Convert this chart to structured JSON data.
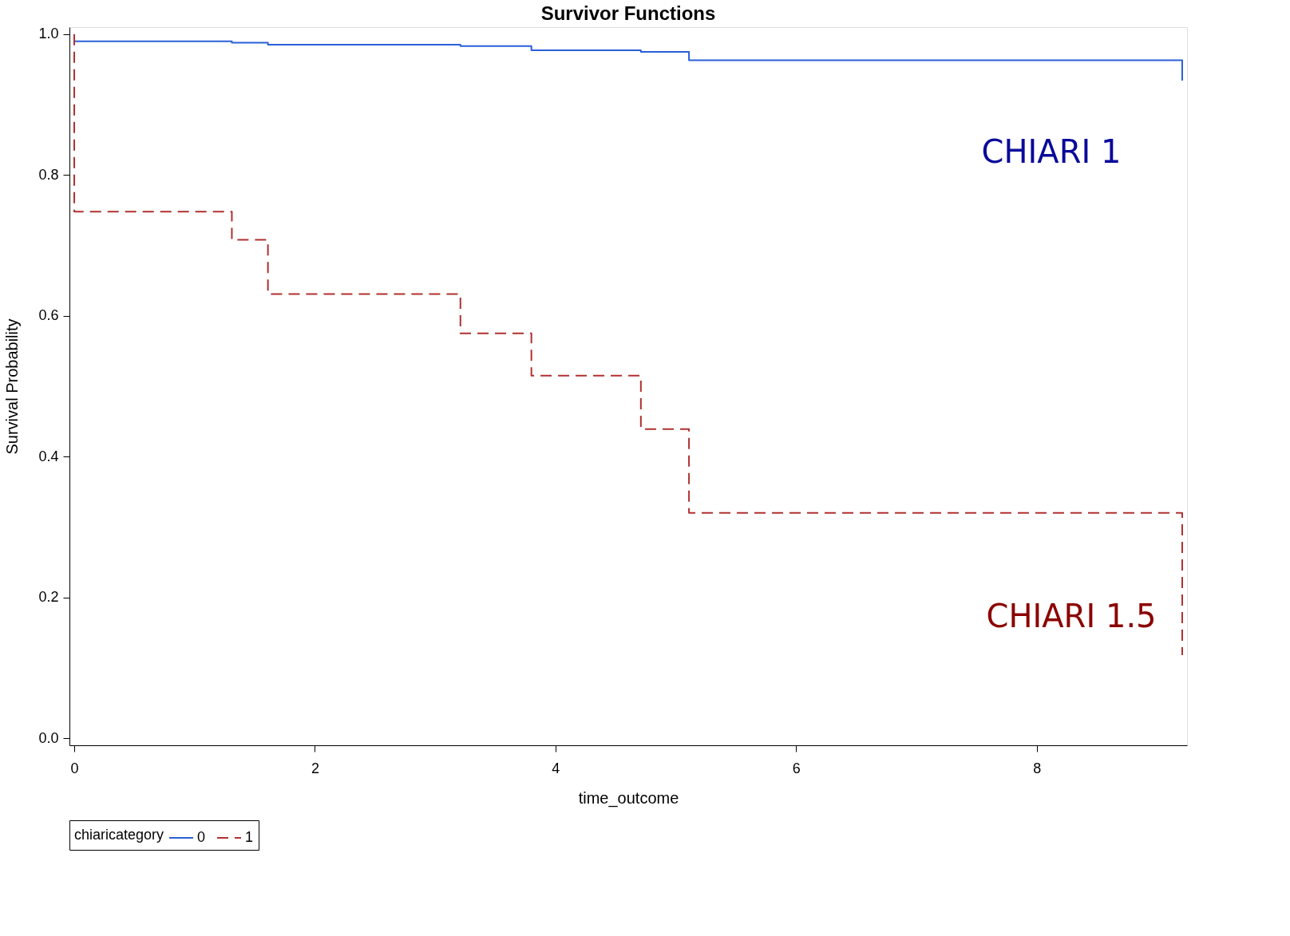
{
  "chart_data": {
    "type": "step",
    "title": "Survivor Functions",
    "xlabel": "time_outcome",
    "ylabel": "Survival Probability",
    "legend_title": "chiaricategory",
    "legend": "bottom",
    "grid": false,
    "series": [
      {
        "name": "0",
        "color": "#2a5fd8",
        "line_style": "solid",
        "x": [
          0,
          1.31,
          1.61,
          3.21,
          3.8,
          4.71,
          5.11,
          9.21,
          9.21
        ],
        "values": [
          0.99,
          0.988,
          0.985,
          0.983,
          0.977,
          0.975,
          0.963,
          0.963,
          0.934
        ]
      },
      {
        "name": "1",
        "color": "#b03030",
        "line_style": "dashed",
        "x": [
          0,
          0,
          1.31,
          1.61,
          3.21,
          3.8,
          4.71,
          5.11,
          9.21,
          9.21
        ],
        "values": [
          1.0,
          0.748,
          0.708,
          0.631,
          0.575,
          0.515,
          0.439,
          0.32,
          0.32,
          0.118
        ]
      }
    ],
    "xlim": [
      -0.04,
      9.25
    ],
    "xticks": [
      0,
      2,
      4,
      6,
      8
    ],
    "ylim": [
      -0.01,
      1.01
    ],
    "yticks": [
      {
        "value": 0,
        "label": "0.0"
      },
      0.2,
      0.4,
      0.6,
      0.8,
      {
        "value": 1,
        "label": "1.0"
      }
    ],
    "annotations": [
      "CHIARI 1",
      "CHIARI 1.5"
    ]
  }
}
